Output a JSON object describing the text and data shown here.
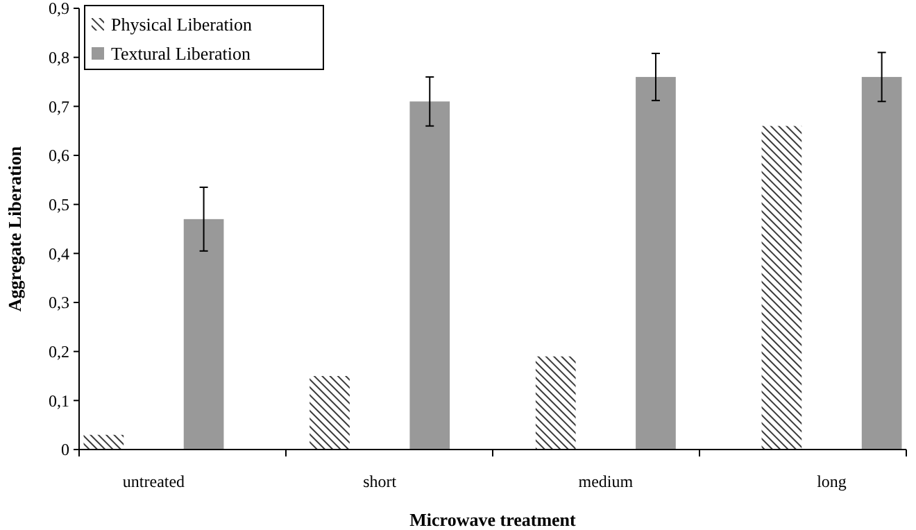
{
  "chart_data": {
    "type": "bar",
    "xlabel": "Microwave treatment",
    "ylabel": "Aggregate Liberation",
    "categories": [
      "untreated",
      "short",
      "medium",
      "long"
    ],
    "series": [
      {
        "name": "Physical Liberation",
        "color": "#3a3a3a",
        "values": [
          0.03,
          0.15,
          0.19,
          0.66
        ]
      },
      {
        "name": "Textural Liberation",
        "color": "#999999",
        "values": [
          0.47,
          0.71,
          0.76,
          0.76
        ],
        "errors": [
          0.065,
          0.05,
          0.048,
          0.05
        ]
      }
    ],
    "ylim": [
      0,
      0.9
    ],
    "yticks": [
      0,
      {
        "value": 0.1,
        "label": "0,1"
      },
      {
        "value": 0.2,
        "label": "0,2"
      },
      {
        "value": 0.3,
        "label": "0,3"
      },
      {
        "value": 0.4,
        "label": "0,4"
      },
      {
        "value": 0.5,
        "label": "0,5"
      },
      {
        "value": 0.6,
        "label": "0,6"
      },
      {
        "value": 0.7,
        "label": "0,7"
      },
      {
        "value": 0.8,
        "label": "0,8"
      },
      {
        "value": 0.9,
        "label": "0,9"
      }
    ],
    "grid": false,
    "legend": "top left"
  }
}
